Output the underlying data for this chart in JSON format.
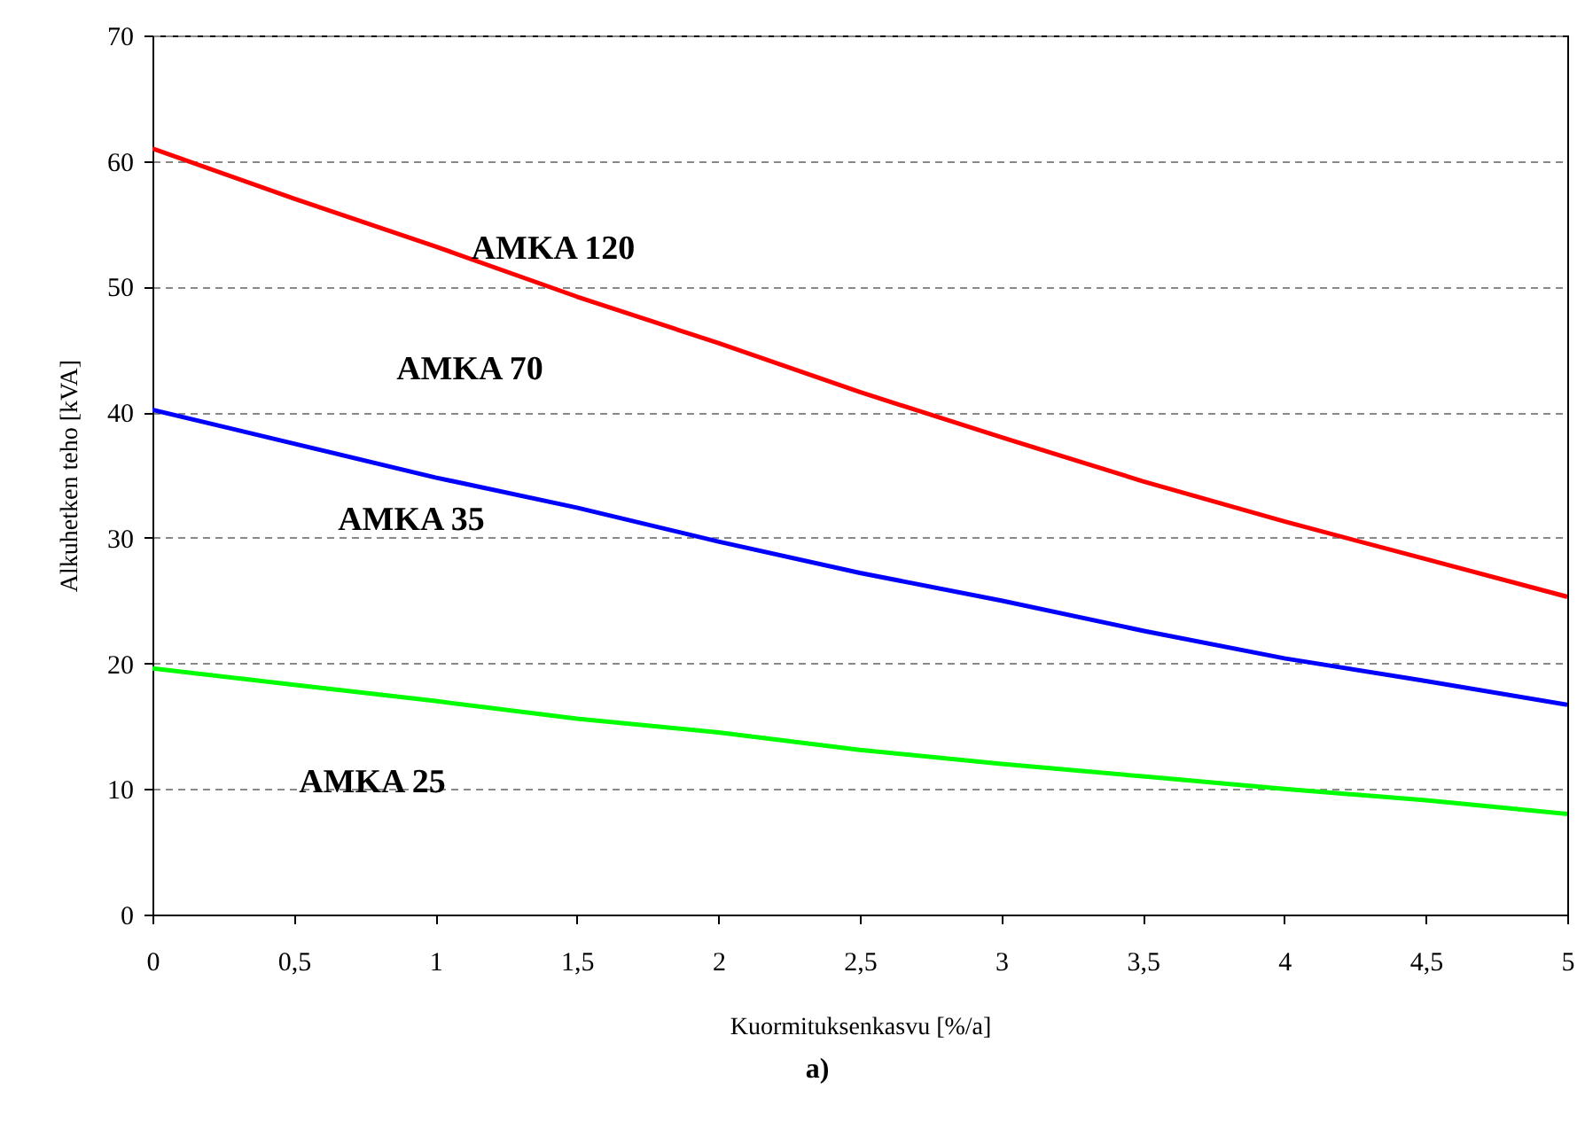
{
  "chart_data": {
    "type": "line",
    "xlabel": "Kuormituksenkasvu [%/a]",
    "ylabel": "Alkuhetken teho [kVA]",
    "x": [
      0,
      0.5,
      1,
      1.5,
      2,
      2.5,
      3,
      3.5,
      4,
      4.5,
      5
    ],
    "series": [
      {
        "color": "#ff0000",
        "values": [
          61,
          57,
          53.2,
          49.2,
          45.5,
          41.6,
          38,
          34.5,
          31.3,
          28.3,
          25.3
        ]
      },
      {
        "color": "#0000ff",
        "values": [
          40.2,
          37.5,
          34.8,
          32.4,
          29.7,
          27.2,
          25,
          22.6,
          20.4,
          18.6,
          16.7
        ]
      },
      {
        "color": "#00ff00",
        "values": [
          19.6,
          18.3,
          17,
          15.6,
          14.5,
          13.1,
          12,
          11,
          10,
          9.1,
          8
        ]
      }
    ],
    "xlim": [
      0,
      5
    ],
    "ylim": [
      0,
      70
    ],
    "xticks": [
      0,
      {
        "value": 0.5,
        "label": "0,5"
      },
      1,
      {
        "value": 1.5,
        "label": "1,5"
      },
      2,
      {
        "value": 2.5,
        "label": "2,5"
      },
      3,
      {
        "value": 3.5,
        "label": "3,5"
      },
      4,
      {
        "value": 4.5,
        "label": "4,5"
      },
      5
    ],
    "yticks": [
      0,
      10,
      20,
      30,
      40,
      50,
      60,
      70
    ],
    "grid": "y",
    "legend": false,
    "marker": "none",
    "line_style": "solid",
    "annotations": [
      "AMKA 120",
      "AMKA  70",
      "AMKA 35",
      "AMKA 25",
      "a)"
    ]
  }
}
